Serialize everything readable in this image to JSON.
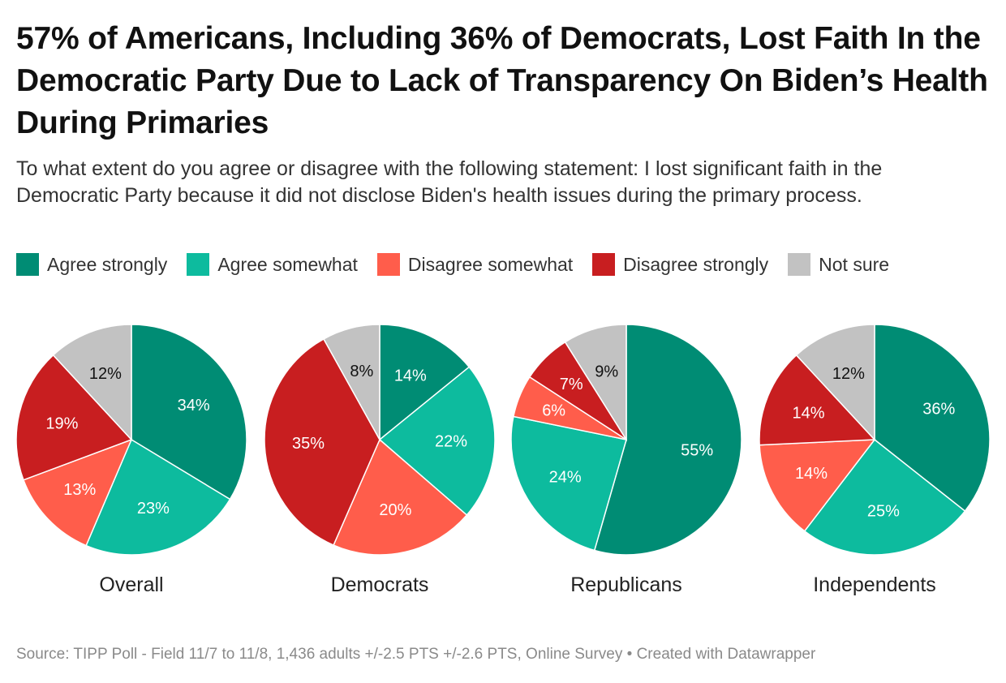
{
  "title": "57% of Americans, Including 36% of Democrats, Lost Faith In the Democratic Party Due to Lack of Transparency On Biden’s Health During Primaries",
  "subtitle": "To what extent do you agree or disagree with the following statement: I lost significant faith in the Democratic Party because it did not disclose Biden's health issues during the primary process.",
  "source": "Source: TIPP Poll - Field 11/7 to 11/8, 1,436 adults +/-2.5 PTS +/-2.6 PTS, Online Survey • Created with Datawrapper",
  "chart_data": {
    "type": "pie",
    "categories": [
      "Agree strongly",
      "Agree somewhat",
      "Disagree somewhat",
      "Disagree strongly",
      "Not sure"
    ],
    "colors": [
      "#008C74",
      "#0DBB9E",
      "#FF5D4B",
      "#C81E20",
      "#C2C2C2"
    ],
    "label_colors": [
      "#ffffff",
      "#ffffff",
      "#ffffff",
      "#ffffff",
      "#111111"
    ],
    "series": [
      {
        "name": "Overall",
        "values": [
          34,
          23,
          13,
          19,
          12
        ]
      },
      {
        "name": "Democrats",
        "values": [
          14,
          22,
          20,
          35,
          8
        ]
      },
      {
        "name": "Republicans",
        "values": [
          55,
          24,
          6,
          7,
          9
        ]
      },
      {
        "name": "Independents",
        "values": [
          36,
          25,
          14,
          14,
          12
        ]
      }
    ]
  }
}
